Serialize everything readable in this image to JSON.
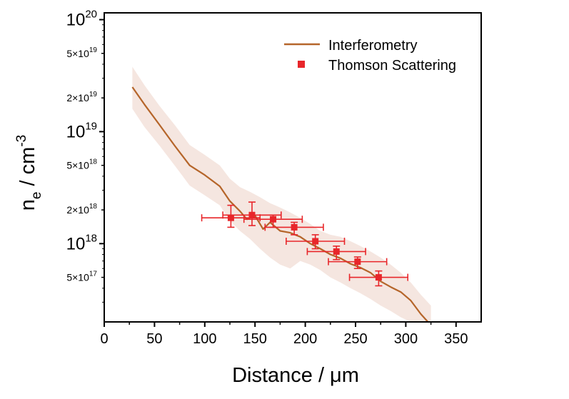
{
  "chart_data": {
    "type": "line",
    "title": "",
    "xlabel": "Distance / μm",
    "ylabel": {
      "base": "n",
      "sub": "e",
      "mid": " / cm",
      "sup": "-3"
    },
    "xlim": [
      0,
      375
    ],
    "ylim": [
      2e+17,
      1.15e+20
    ],
    "yscale": "log",
    "x_ticks": [
      0,
      50,
      100,
      150,
      200,
      250,
      300,
      350
    ],
    "x_tick_labels": [
      "0",
      "50",
      "100",
      "150",
      "200",
      "250",
      "300",
      "350"
    ],
    "y_major_ticks": [
      {
        "value": 1e+18,
        "base": "10",
        "exp": "18"
      },
      {
        "value": 1e+19,
        "base": "10",
        "exp": "19"
      },
      {
        "value": 1e+20,
        "base": "10",
        "exp": "20"
      }
    ],
    "y_minor_ticks": [
      {
        "value": 5e+17,
        "base": "5×10",
        "exp": "17"
      },
      {
        "value": 2e+18,
        "base": "2×10",
        "exp": "18"
      },
      {
        "value": 5e+18,
        "base": "5×10",
        "exp": "18"
      },
      {
        "value": 2e+19,
        "base": "2×10",
        "exp": "19"
      },
      {
        "value": 5e+19,
        "base": "5×10",
        "exp": "19"
      }
    ],
    "legend": {
      "placement": "top-right",
      "entries": [
        {
          "label": "Interferometry",
          "marker": "line"
        },
        {
          "label": "Thomson Scattering",
          "marker": "square"
        }
      ]
    },
    "series": [
      {
        "name": "Interferometry",
        "color": "#b5652a",
        "x": [
          28,
          40,
          55,
          70,
          85,
          100,
          115,
          125,
          135,
          142,
          150,
          158,
          165,
          175,
          185,
          195,
          205,
          215,
          225,
          235,
          245,
          255,
          265,
          275,
          285,
          295,
          305,
          315,
          322
        ],
        "y": [
          2.5e+19,
          1.75e+19,
          1.15e+19,
          7.5e+18,
          5e+18,
          4.1e+18,
          3.25e+18,
          2.4e+18,
          1.95e+18,
          1.65e+18,
          1.78e+18,
          1.35e+18,
          1.55e+18,
          1.3e+18,
          1.25e+18,
          1.15e+18,
          1e+18,
          9e+17,
          8e+17,
          7.4e+17,
          6.6e+17,
          6.1e+17,
          5.5e+17,
          4.6e+17,
          4.1e+17,
          3.7e+17,
          3.1e+17,
          2.35e+17,
          2e+17
        ]
      },
      {
        "name": "Interferometry uncertainty band",
        "color": "#f5e6e0",
        "x": [
          28,
          40,
          55,
          70,
          85,
          100,
          115,
          125,
          135,
          145,
          155,
          165,
          175,
          185,
          195,
          205,
          215,
          225,
          235,
          245,
          255,
          265,
          275,
          285,
          295,
          305,
          315,
          325
        ],
        "upper": [
          3.8e+19,
          2.6e+19,
          1.7e+19,
          1.15e+19,
          7.6e+18,
          6.2e+18,
          5e+18,
          3.8e+18,
          3.2e+18,
          2.9e+18,
          2.6e+18,
          2.3e+18,
          2.1e+18,
          1.9e+18,
          1.7e+18,
          1.5e+18,
          1.3e+18,
          1.2e+18,
          1.15e+18,
          1.05e+18,
          9.5e+17,
          8.5e+17,
          7.5e+17,
          6.5e+17,
          5.5e+17,
          4.5e+17,
          3.5e+17,
          2.8e+17
        ],
        "lower": [
          1.6e+19,
          1.1e+19,
          7.5e+18,
          5e+18,
          3.3e+18,
          2.7e+18,
          2.2e+18,
          1.6e+18,
          1.3e+18,
          1.1e+18,
          9e+17,
          7.5e+17,
          6.5e+17,
          6e+17,
          7e+17,
          6.5e+17,
          5.8e+17,
          5e+17,
          4.5e+17,
          4e+17,
          3.6e+17,
          3.2e+17,
          2.8e+17,
          2.5e+17,
          2.2e+17,
          2e+17,
          2e+17,
          2e+17
        ]
      },
      {
        "name": "Thomson Scattering",
        "color": "#e8262a",
        "x": [
          126,
          147,
          168,
          189,
          210,
          231,
          252,
          273
        ],
        "y": [
          1.7e+18,
          1.8e+18,
          1.65e+18,
          1.4e+18,
          1.05e+18,
          8.5e+17,
          6.9e+17,
          5e+17
        ],
        "x_err": [
          29,
          29,
          29,
          29,
          29,
          29,
          29,
          29
        ],
        "y_err_low": [
          3e+17,
          3.5e+17,
          2.5e+17,
          2e+17,
          1.5e+17,
          1.3e+17,
          9e+16,
          8e+16
        ],
        "y_err_high": [
          5e+17,
          5.5e+17,
          1.5e+17,
          1.5e+17,
          1.5e+17,
          1e+17,
          7e+16,
          7e+16
        ]
      }
    ]
  }
}
